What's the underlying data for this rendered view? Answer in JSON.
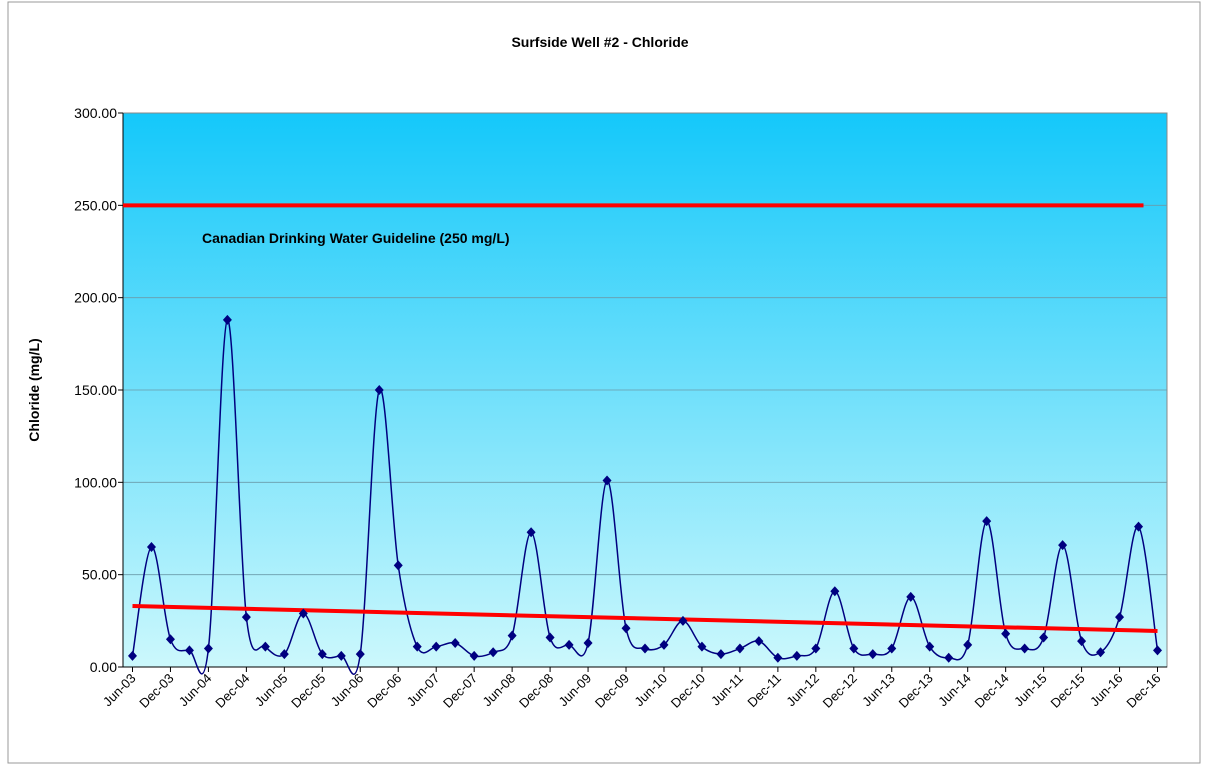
{
  "chart_data": {
    "type": "line",
    "title": "Surfside Well #2 - Chloride",
    "y_label": "Chloride (mg/L)",
    "categories": [
      "Jun-03",
      null,
      "Dec-03",
      null,
      "Jun-04",
      null,
      "Dec-04",
      null,
      "Jun-05",
      null,
      "Dec-05",
      null,
      "Jun-06",
      null,
      "Dec-06",
      null,
      "Jun-07",
      null,
      "Dec-07",
      null,
      "Jun-08",
      null,
      "Dec-08",
      null,
      "Jun-09",
      null,
      "Dec-09",
      null,
      "Jun-10",
      null,
      "Dec-10",
      null,
      "Jun-11",
      null,
      "Dec-11",
      null,
      "Jun-12",
      null,
      "Dec-12",
      null,
      "Jun-13",
      null,
      "Dec-13",
      null,
      "Jun-14",
      null,
      "Dec-14",
      null,
      "Jun-15",
      null,
      "Dec-15",
      null,
      "Jun-16",
      null,
      "Dec-16"
    ],
    "values": [
      6,
      65,
      15,
      9,
      10,
      188,
      27,
      11,
      7,
      29,
      7,
      6,
      7,
      150,
      55,
      11,
      11,
      13,
      6,
      8,
      17,
      73,
      16,
      12,
      13,
      101,
      21,
      10,
      12,
      25,
      11,
      7,
      10,
      14,
      5,
      6,
      10,
      41,
      10,
      7,
      10,
      38,
      11,
      5,
      12,
      79,
      18,
      10,
      16,
      66,
      14,
      8,
      27,
      76,
      9
    ],
    "color": "#000080",
    "trendline": {
      "color": "#ff0000",
      "values": [
        33,
        19.5
      ]
    },
    "guideline": {
      "value": 250,
      "color": "#ff0000",
      "label": "Canadian Drinking Water Guideline (250 mg/L)"
    },
    "ylim": [
      0,
      300
    ],
    "yticks": [
      {
        "value": 0,
        "label": "0.00"
      },
      {
        "value": 50,
        "label": "50.00"
      },
      {
        "value": 100,
        "label": "100.00"
      },
      {
        "value": 150,
        "label": "150.00"
      },
      {
        "value": 200,
        "label": "200.00"
      },
      {
        "value": 250,
        "label": "250.00"
      },
      {
        "value": 300,
        "label": "300.00"
      }
    ],
    "grid": true
  }
}
